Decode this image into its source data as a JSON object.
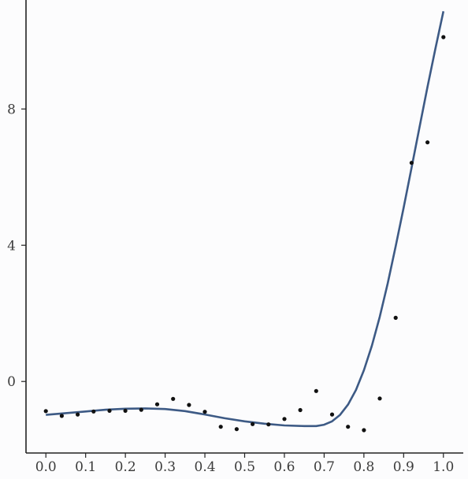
{
  "chart_data": {
    "type": "scatter",
    "title": "",
    "xlabel": "",
    "ylabel": "",
    "xlim": [
      -0.05,
      1.05
    ],
    "ylim": [
      -2.1,
      11.2
    ],
    "xticks": [
      "0.0",
      "0.1",
      "0.2",
      "0.3",
      "0.4",
      "0.5",
      "0.6",
      "0.7",
      "0.8",
      "0.9",
      "1.0"
    ],
    "yticks": [
      "0",
      "4",
      "8"
    ],
    "grid": false,
    "legend": "none",
    "series": [
      {
        "kind": "points",
        "color": "#111111",
        "points": [
          [
            0.0,
            -0.87
          ],
          [
            0.04,
            -1.01
          ],
          [
            0.08,
            -0.97
          ],
          [
            0.12,
            -0.88
          ],
          [
            0.16,
            -0.86
          ],
          [
            0.2,
            -0.86
          ],
          [
            0.24,
            -0.83
          ],
          [
            0.28,
            -0.67
          ],
          [
            0.32,
            -0.51
          ],
          [
            0.36,
            -0.69
          ],
          [
            0.4,
            -0.89
          ],
          [
            0.44,
            -1.33
          ],
          [
            0.48,
            -1.4
          ],
          [
            0.52,
            -1.25
          ],
          [
            0.56,
            -1.26
          ],
          [
            0.6,
            -1.1
          ],
          [
            0.64,
            -0.84
          ],
          [
            0.68,
            -0.28
          ],
          [
            0.72,
            -0.97
          ],
          [
            0.76,
            -1.33
          ],
          [
            0.8,
            -1.43
          ],
          [
            0.84,
            -0.5
          ],
          [
            0.88,
            1.87
          ],
          [
            0.92,
            6.42
          ],
          [
            0.96,
            7.02
          ],
          [
            1.0,
            10.11
          ]
        ]
      },
      {
        "kind": "line",
        "color": "#3d5a85",
        "points": [
          [
            0.0,
            -0.98
          ],
          [
            0.05,
            -0.93
          ],
          [
            0.1,
            -0.88
          ],
          [
            0.15,
            -0.83
          ],
          [
            0.2,
            -0.8
          ],
          [
            0.25,
            -0.79
          ],
          [
            0.3,
            -0.81
          ],
          [
            0.35,
            -0.87
          ],
          [
            0.4,
            -0.97
          ],
          [
            0.45,
            -1.08
          ],
          [
            0.5,
            -1.17
          ],
          [
            0.55,
            -1.24
          ],
          [
            0.6,
            -1.29
          ],
          [
            0.65,
            -1.31
          ],
          [
            0.68,
            -1.31
          ],
          [
            0.7,
            -1.27
          ],
          [
            0.72,
            -1.17
          ],
          [
            0.74,
            -0.98
          ],
          [
            0.76,
            -0.68
          ],
          [
            0.78,
            -0.25
          ],
          [
            0.8,
            0.33
          ],
          [
            0.82,
            1.05
          ],
          [
            0.84,
            1.9
          ],
          [
            0.86,
            2.88
          ],
          [
            0.88,
            3.97
          ],
          [
            0.9,
            5.1
          ],
          [
            0.92,
            6.28
          ],
          [
            0.94,
            7.47
          ],
          [
            0.96,
            8.65
          ],
          [
            0.98,
            9.78
          ],
          [
            1.0,
            10.87
          ]
        ]
      }
    ]
  }
}
